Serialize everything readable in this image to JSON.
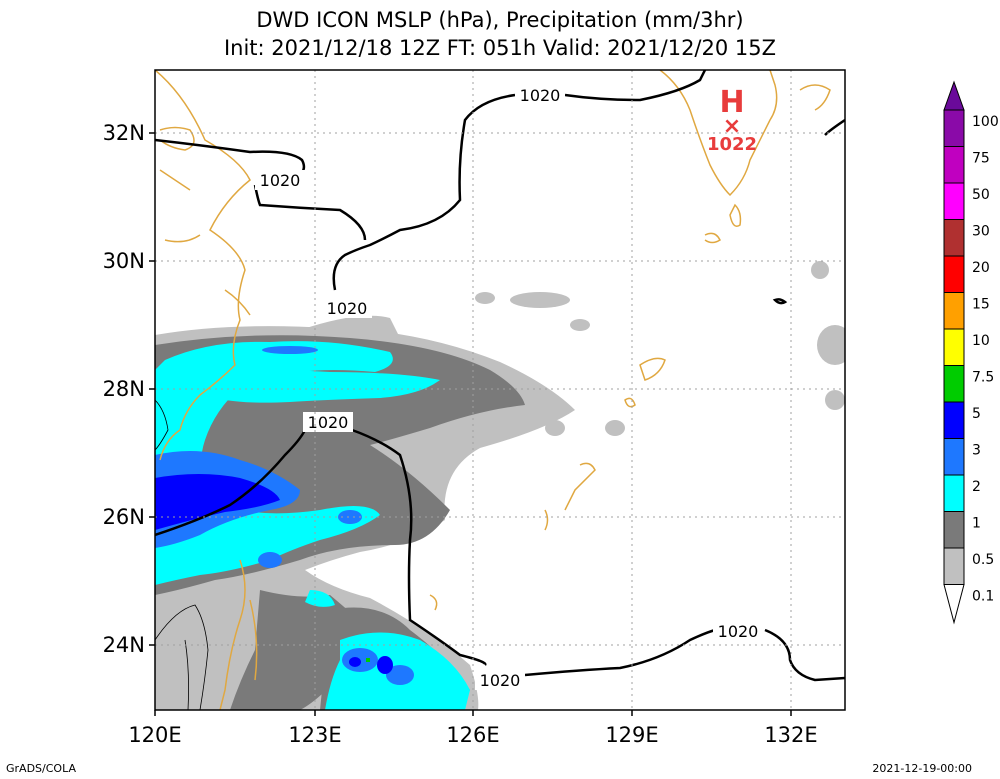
{
  "title": {
    "line1": "DWD ICON MSLP (hPa), Precipitation (mm/3hr)",
    "line2": "Init: 2021/12/18 12Z  FT: 051h  Valid: 2021/12/20 15Z"
  },
  "map": {
    "lon_labels": [
      "120E",
      "123E",
      "126E",
      "129E",
      "132E"
    ],
    "lat_labels": [
      "32N",
      "30N",
      "28N",
      "26N",
      "24N"
    ],
    "isobar_labels": [
      {
        "text": "1020",
        "name": "isobar-label-north"
      },
      {
        "text": "1020",
        "name": "isobar-label-northwest"
      },
      {
        "text": "1020",
        "name": "isobar-label-center-north"
      },
      {
        "text": "1020",
        "name": "isobar-label-center"
      },
      {
        "text": "1020",
        "name": "isobar-label-south"
      },
      {
        "text": "1020",
        "name": "isobar-label-southeast"
      }
    ],
    "high": {
      "symbol": "H",
      "marker": "×",
      "value": "1022",
      "color": "#e83c3c"
    },
    "colors": {
      "isobar": "#000000",
      "coast": "#e0a841",
      "grid": "#a0a0a0"
    }
  },
  "legend": {
    "labels": [
      "100",
      "75",
      "50",
      "30",
      "20",
      "15",
      "10",
      "7.5",
      "5",
      "3",
      "2",
      "1",
      "0.5",
      "0.1"
    ],
    "colors": [
      "#6a0a9a",
      "#8a0aa8",
      "#c000c0",
      "#ff00ff",
      "#b03030",
      "#ff0000",
      "#ffa000",
      "#ffff00",
      "#00cc00",
      "#0000ff",
      "#1e78ff",
      "#00ffff",
      "#7a7a7a",
      "#c0c0c0"
    ]
  },
  "footer": {
    "left": "GrADS/COLA",
    "right": "2021-12-19-00:00"
  }
}
